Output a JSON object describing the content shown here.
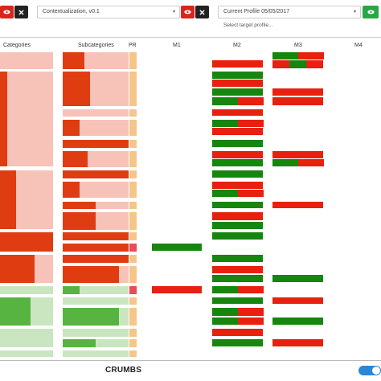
{
  "toolbar": {
    "context_select": {
      "value": "Contextualization, v0.1"
    },
    "profile_select": {
      "value": "Current Profile 05/05/2017",
      "hint": "Select target profile..."
    }
  },
  "columns": {
    "categories": "Categories",
    "subcategories": "Subcategories",
    "pr": "PR",
    "m1": "M1",
    "m2": "M2",
    "m3": "M3",
    "m4": "M4"
  },
  "footer": {
    "crumbs": "CRUMBS"
  },
  "colors": {
    "red": "#e8200f",
    "green": "#16860f",
    "dark_orange": "#e03c12",
    "light_pink": "#f7c3b8",
    "light_green": "#c9e6c0",
    "mid_green": "#58b441",
    "pr_orange": "#f5c58a",
    "pr_red": "#ea4a5a"
  },
  "icons": {
    "view": "eye-icon",
    "close": "close-icon"
  },
  "matrix": {
    "categories": [
      {
        "y": 65,
        "h": 21,
        "fill": 0.0,
        "state": "red"
      },
      {
        "y": 89,
        "h": 118,
        "fill": 0.13,
        "state": "red"
      },
      {
        "y": 212,
        "h": 73,
        "fill": 0.3,
        "state": "red"
      },
      {
        "y": 289,
        "h": 24,
        "fill": 1.0,
        "state": "red"
      },
      {
        "y": 317,
        "h": 35,
        "fill": 0.65,
        "state": "red"
      },
      {
        "y": 356,
        "h": 10,
        "fill": 0.0,
        "state": "green"
      },
      {
        "y": 370,
        "h": 35,
        "fill": 0.58,
        "state": "green"
      },
      {
        "y": 409,
        "h": 23,
        "fill": 0.0,
        "state": "green"
      },
      {
        "y": 436,
        "h": 8,
        "fill": 0.0,
        "state": "green"
      }
    ],
    "subcategories": [
      {
        "y": 65,
        "h": 21,
        "fill": 0.33,
        "state": "red"
      },
      {
        "y": 89,
        "h": 43,
        "fill": 0.42,
        "state": "red"
      },
      {
        "y": 136,
        "h": 9,
        "fill": 0.0,
        "state": "red"
      },
      {
        "y": 149,
        "h": 20,
        "fill": 0.25,
        "state": "red"
      },
      {
        "y": 174,
        "h": 10,
        "fill": 1.0,
        "state": "red"
      },
      {
        "y": 188,
        "h": 20,
        "fill": 0.38,
        "state": "red"
      },
      {
        "y": 212,
        "h": 10,
        "fill": 1.0,
        "state": "red"
      },
      {
        "y": 226,
        "h": 20,
        "fill": 0.25,
        "state": "red"
      },
      {
        "y": 251,
        "h": 9,
        "fill": 0.5,
        "state": "red"
      },
      {
        "y": 264,
        "h": 22,
        "fill": 0.5,
        "state": "red"
      },
      {
        "y": 289,
        "h": 10,
        "fill": 1.0,
        "state": "red"
      },
      {
        "y": 303,
        "h": 10,
        "fill": 1.0,
        "state": "red"
      },
      {
        "y": 317,
        "h": 10,
        "fill": 1.0,
        "state": "red"
      },
      {
        "y": 331,
        "h": 21,
        "fill": 0.85,
        "state": "red"
      },
      {
        "y": 356,
        "h": 10,
        "fill": 0.25,
        "state": "green"
      },
      {
        "y": 370,
        "h": 9,
        "fill": 0.0,
        "state": "green"
      },
      {
        "y": 383,
        "h": 22,
        "fill": 0.85,
        "state": "green"
      },
      {
        "y": 409,
        "h": 10,
        "fill": 0.0,
        "state": "green"
      },
      {
        "y": 422,
        "h": 10,
        "fill": 0.5,
        "state": "green"
      },
      {
        "y": 436,
        "h": 8,
        "fill": 0.0,
        "state": "green"
      }
    ],
    "pr": [
      {
        "y": 65,
        "h": 21,
        "state": "orange"
      },
      {
        "y": 89,
        "h": 43,
        "state": "orange"
      },
      {
        "y": 136,
        "h": 9,
        "state": "orange"
      },
      {
        "y": 149,
        "h": 20,
        "state": "orange"
      },
      {
        "y": 174,
        "h": 10,
        "state": "orange"
      },
      {
        "y": 188,
        "h": 20,
        "state": "orange"
      },
      {
        "y": 212,
        "h": 10,
        "state": "orange"
      },
      {
        "y": 226,
        "h": 20,
        "state": "orange"
      },
      {
        "y": 251,
        "h": 9,
        "state": "orange"
      },
      {
        "y": 264,
        "h": 22,
        "state": "orange"
      },
      {
        "y": 289,
        "h": 10,
        "state": "orange"
      },
      {
        "y": 303,
        "h": 10,
        "state": "red"
      },
      {
        "y": 317,
        "h": 10,
        "state": "orange"
      },
      {
        "y": 331,
        "h": 21,
        "state": "orange"
      },
      {
        "y": 356,
        "h": 10,
        "state": "red"
      },
      {
        "y": 370,
        "h": 9,
        "state": "orange"
      },
      {
        "y": 383,
        "h": 22,
        "state": "orange"
      },
      {
        "y": 409,
        "h": 10,
        "state": "orange"
      },
      {
        "y": 422,
        "h": 10,
        "state": "orange"
      },
      {
        "y": 436,
        "h": 8,
        "state": "orange"
      }
    ],
    "m1": [
      {
        "y": 303,
        "h": 10,
        "segments": [
          "green"
        ]
      },
      {
        "y": 356,
        "h": 10,
        "segments": [
          "red"
        ]
      }
    ],
    "m2": [
      {
        "y": 75,
        "h": 10,
        "segments": [
          "red"
        ]
      },
      {
        "y": 89,
        "h": 10,
        "segments": [
          "green"
        ]
      },
      {
        "y": 99,
        "h": 10,
        "segments": [
          "red"
        ]
      },
      {
        "y": 110,
        "h": 10,
        "segments": [
          "green"
        ]
      },
      {
        "y": 121,
        "h": 11,
        "segments": [
          "green",
          "red"
        ]
      },
      {
        "y": 136,
        "h": 9,
        "segments": [
          "red"
        ]
      },
      {
        "y": 149,
        "h": 10,
        "segments": [
          "green",
          "red"
        ]
      },
      {
        "y": 159,
        "h": 10,
        "segments": [
          "red"
        ]
      },
      {
        "y": 174,
        "h": 10,
        "segments": [
          "green"
        ]
      },
      {
        "y": 188,
        "h": 10,
        "segments": [
          "red"
        ]
      },
      {
        "y": 198,
        "h": 10,
        "segments": [
          "green"
        ]
      },
      {
        "y": 212,
        "h": 10,
        "segments": [
          "green"
        ]
      },
      {
        "y": 226,
        "h": 10,
        "segments": [
          "red"
        ]
      },
      {
        "y": 236,
        "h": 10,
        "segments": [
          "green",
          "red"
        ]
      },
      {
        "y": 251,
        "h": 9,
        "segments": [
          "green"
        ]
      },
      {
        "y": 264,
        "h": 11,
        "segments": [
          "red"
        ]
      },
      {
        "y": 276,
        "h": 10,
        "segments": [
          "green"
        ]
      },
      {
        "y": 289,
        "h": 10,
        "segments": [
          "green"
        ]
      },
      {
        "y": 317,
        "h": 10,
        "segments": [
          "green"
        ]
      },
      {
        "y": 331,
        "h": 10,
        "segments": [
          "red"
        ]
      },
      {
        "y": 342,
        "h": 10,
        "segments": [
          "green"
        ]
      },
      {
        "y": 356,
        "h": 10,
        "segments": [
          "green",
          "red"
        ]
      },
      {
        "y": 370,
        "h": 9,
        "segments": [
          "green"
        ]
      },
      {
        "y": 383,
        "h": 11,
        "segments": [
          "green",
          "red"
        ]
      },
      {
        "y": 395,
        "h": 10,
        "segments": [
          "green",
          "red"
        ]
      },
      {
        "y": 409,
        "h": 10,
        "segments": [
          "red"
        ]
      },
      {
        "y": 422,
        "h": 10,
        "segments": [
          "green"
        ]
      }
    ],
    "m3": [
      {
        "y": 65,
        "h": 10,
        "segments": [
          "green",
          "red"
        ]
      },
      {
        "y": 75,
        "h": 11,
        "segments": [
          "red",
          "green",
          "red"
        ]
      },
      {
        "y": 110,
        "h": 10,
        "segments": [
          "red"
        ]
      },
      {
        "y": 121,
        "h": 11,
        "segments": [
          "red"
        ]
      },
      {
        "y": 188,
        "h": 10,
        "segments": [
          "red"
        ]
      },
      {
        "y": 198,
        "h": 10,
        "segments": [
          "green",
          "red"
        ]
      },
      {
        "y": 251,
        "h": 9,
        "segments": [
          "red"
        ]
      },
      {
        "y": 342,
        "h": 10,
        "segments": [
          "green"
        ]
      },
      {
        "y": 370,
        "h": 9,
        "segments": [
          "red"
        ]
      },
      {
        "y": 395,
        "h": 10,
        "segments": [
          "green"
        ]
      },
      {
        "y": 422,
        "h": 10,
        "segments": [
          "red"
        ]
      }
    ],
    "m4": []
  }
}
